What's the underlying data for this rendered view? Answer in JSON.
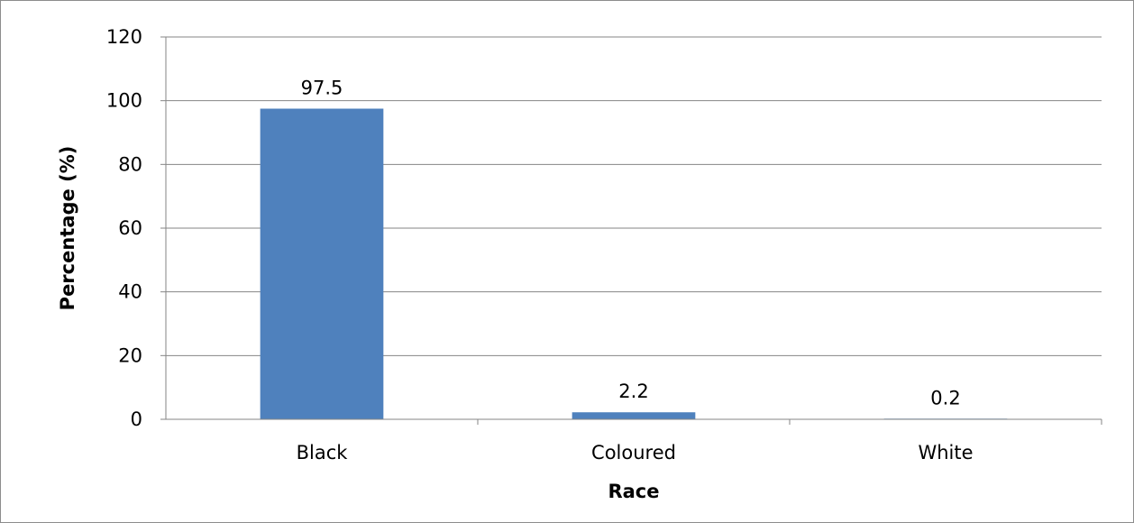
{
  "chart_data": {
    "type": "bar",
    "categories": [
      "Black",
      "Coloured",
      "White"
    ],
    "values": [
      97.5,
      2.2,
      0.2
    ],
    "data_labels": [
      "97.5",
      "2.2",
      "0.2"
    ],
    "title": "",
    "xlabel": "Race",
    "ylabel": "Percentage (%)",
    "ylim": [
      0,
      120
    ],
    "yticks": [
      0,
      20,
      40,
      60,
      80,
      100,
      120
    ],
    "grid": true,
    "legend": "none",
    "colors": {
      "bar": "#4f81bd",
      "grid": "#868686",
      "axis": "#868686"
    }
  }
}
